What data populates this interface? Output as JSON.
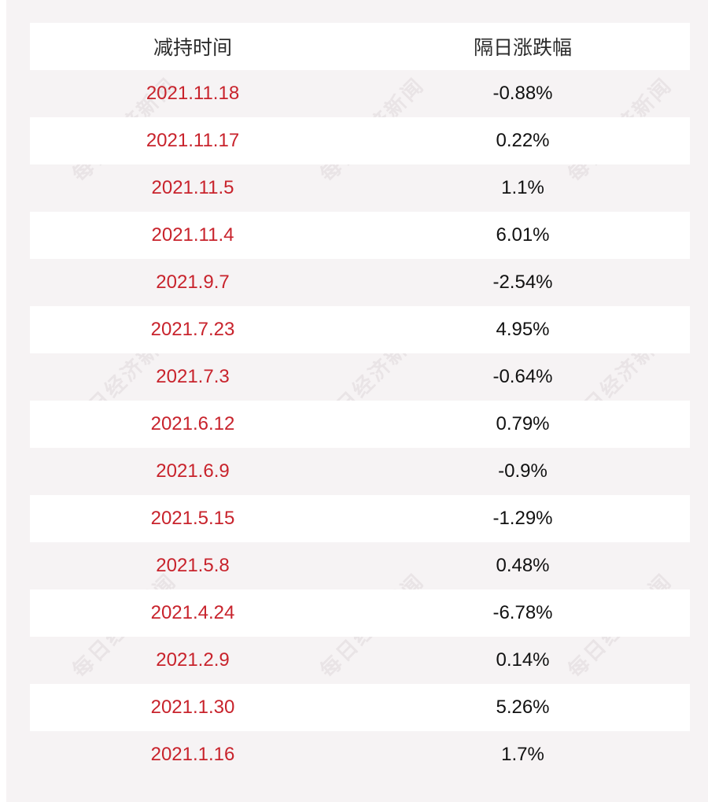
{
  "table": {
    "headers": [
      "减持时间",
      "隔日涨跌幅"
    ],
    "rows": [
      {
        "date": "2021.11.18",
        "change": "-0.88%"
      },
      {
        "date": "2021.11.17",
        "change": "0.22%"
      },
      {
        "date": "2021.11.5",
        "change": "1.1%"
      },
      {
        "date": "2021.11.4",
        "change": "6.01%"
      },
      {
        "date": "2021.9.7",
        "change": "-2.54%"
      },
      {
        "date": "2021.7.23",
        "change": "4.95%"
      },
      {
        "date": "2021.7.3",
        "change": "-0.64%"
      },
      {
        "date": "2021.6.12",
        "change": "0.79%"
      },
      {
        "date": "2021.6.9",
        "change": "-0.9%"
      },
      {
        "date": "2021.5.15",
        "change": "-1.29%"
      },
      {
        "date": "2021.5.8",
        "change": "0.48%"
      },
      {
        "date": "2021.4.24",
        "change": "-6.78%"
      },
      {
        "date": "2021.2.9",
        "change": "0.14%"
      },
      {
        "date": "2021.1.30",
        "change": "5.26%"
      },
      {
        "date": "2021.1.16",
        "change": "1.7%"
      }
    ]
  },
  "watermark": "每日经济新闻",
  "colors": {
    "date_text": "#c8232c",
    "value_text": "#111111",
    "header_text": "#2b2b2b",
    "striped_row": "#ffffff",
    "background": "#f6f3f4"
  }
}
